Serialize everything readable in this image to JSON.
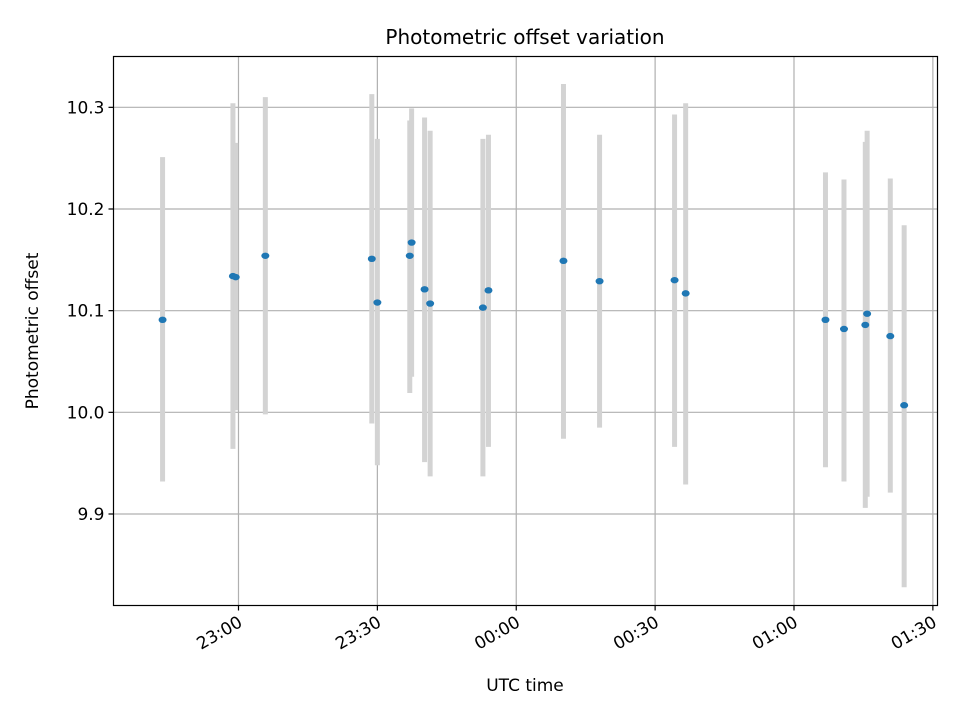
{
  "chart_data": {
    "type": "scatter",
    "title": "Photometric offset variation",
    "xlabel": "UTC time",
    "ylabel": "Photometric offset",
    "grid": true,
    "x_ticks": [
      {
        "value": "23:00",
        "label": "23:00"
      },
      {
        "value": "23:30",
        "label": "23:30"
      },
      {
        "value": "00:00",
        "label": "00:00"
      },
      {
        "value": "00:30",
        "label": "00:30"
      },
      {
        "value": "01:00",
        "label": "01:00"
      },
      {
        "value": "01:30",
        "label": "01:30"
      }
    ],
    "y_ticks": [
      9.9,
      10.0,
      10.1,
      10.2,
      10.3
    ],
    "y_tick_labels": [
      "9.9",
      "10.0",
      "10.1",
      "10.2",
      "10.3"
    ],
    "xlim": [
      "22:33",
      "01:31"
    ],
    "ylim": [
      9.81,
      10.35
    ],
    "point_color": "#1f77b4",
    "errorbar_color": "#d3d3d3",
    "series": [
      {
        "points": [
          {
            "x": "22:43:36",
            "y": 10.091,
            "err_low": 9.932,
            "err_high": 10.251
          },
          {
            "x": "22:58:48",
            "y": 10.134,
            "err_low": 9.964,
            "err_high": 10.304
          },
          {
            "x": "22:59:24",
            "y": 10.133,
            "err_low": 10.002,
            "err_high": 10.265
          },
          {
            "x": "23:05:48",
            "y": 10.154,
            "err_low": 9.998,
            "err_high": 10.31
          },
          {
            "x": "23:28:48",
            "y": 10.151,
            "err_low": 9.989,
            "err_high": 10.313
          },
          {
            "x": "23:30:00",
            "y": 10.108,
            "err_low": 9.948,
            "err_high": 10.269
          },
          {
            "x": "23:37:00",
            "y": 10.154,
            "err_low": 10.019,
            "err_high": 10.287
          },
          {
            "x": "23:37:24",
            "y": 10.167,
            "err_low": 10.035,
            "err_high": 10.299
          },
          {
            "x": "23:40:12",
            "y": 10.121,
            "err_low": 9.951,
            "err_high": 10.29
          },
          {
            "x": "23:41:24",
            "y": 10.107,
            "err_low": 9.937,
            "err_high": 10.277
          },
          {
            "x": "23:52:48",
            "y": 10.103,
            "err_low": 9.937,
            "err_high": 10.269
          },
          {
            "x": "23:54:00",
            "y": 10.12,
            "err_low": 9.966,
            "err_high": 10.273
          },
          {
            "x": "00:10:12",
            "y": 10.149,
            "err_low": 9.974,
            "err_high": 10.323
          },
          {
            "x": "00:18:00",
            "y": 10.129,
            "err_low": 9.985,
            "err_high": 10.273
          },
          {
            "x": "00:34:12",
            "y": 10.13,
            "err_low": 9.966,
            "err_high": 10.293
          },
          {
            "x": "00:36:36",
            "y": 10.117,
            "err_low": 9.929,
            "err_high": 10.304
          },
          {
            "x": "01:06:48",
            "y": 10.091,
            "err_low": 9.946,
            "err_high": 10.236
          },
          {
            "x": "01:10:48",
            "y": 10.082,
            "err_low": 9.932,
            "err_high": 10.229
          },
          {
            "x": "01:15:24",
            "y": 10.086,
            "err_low": 9.906,
            "err_high": 10.266
          },
          {
            "x": "01:15:48",
            "y": 10.097,
            "err_low": 9.917,
            "err_high": 10.277
          },
          {
            "x": "01:20:48",
            "y": 10.075,
            "err_low": 9.921,
            "err_high": 10.23
          },
          {
            "x": "01:23:48",
            "y": 10.007,
            "err_low": 9.828,
            "err_high": 10.184
          }
        ]
      }
    ]
  }
}
